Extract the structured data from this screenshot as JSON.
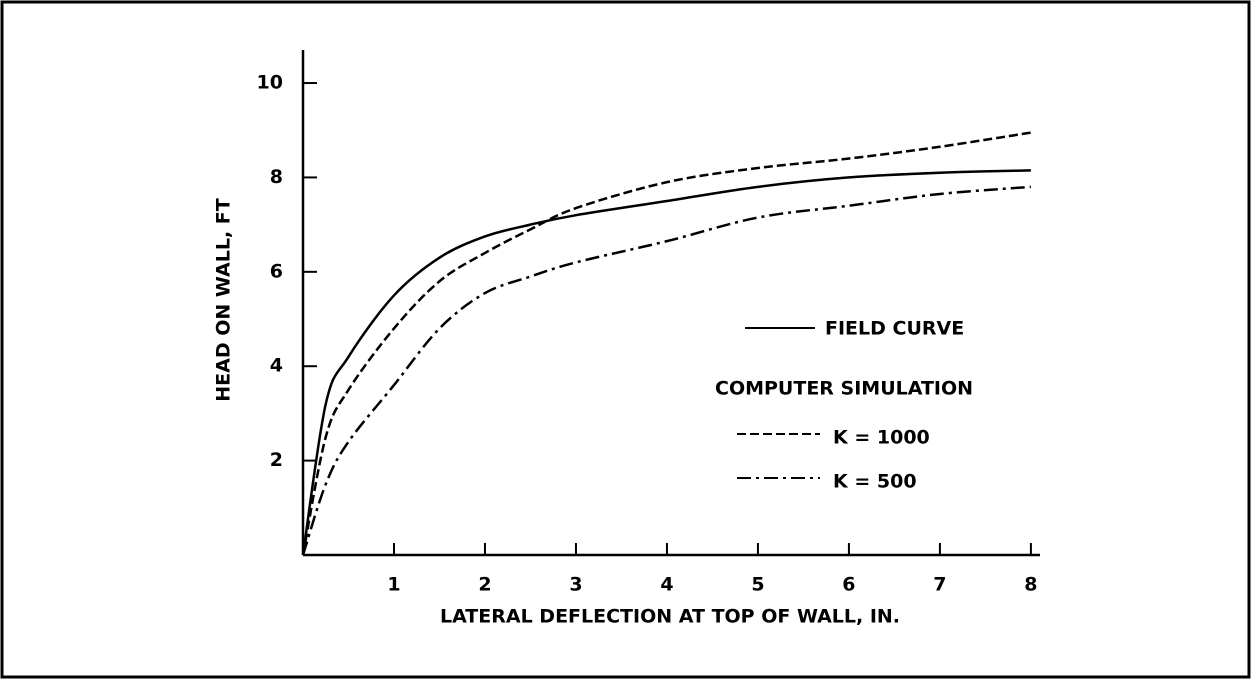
{
  "chart_data": {
    "type": "line",
    "x_label": "LATERAL DEFLECTION AT TOP OF WALL, IN.",
    "y_label": "HEAD ON WALL, FT",
    "annotation": "COMPUTER SIMULATION",
    "x": [
      0,
      0.25,
      0.5,
      1,
      1.5,
      2,
      2.5,
      3,
      4,
      5,
      6,
      7,
      8
    ],
    "series": [
      {
        "name": "FIELD CURVE",
        "color": "#000000",
        "style": "solid",
        "values": [
          0,
          3.2,
          4.2,
          5.5,
          6.3,
          6.75,
          7.0,
          7.2,
          7.5,
          7.8,
          8.0,
          8.1,
          8.15
        ]
      },
      {
        "name": "K = 1000",
        "color": "#000000",
        "style": "dashed",
        "values": [
          0,
          2.5,
          3.5,
          4.8,
          5.8,
          6.4,
          6.9,
          7.35,
          7.9,
          8.2,
          8.4,
          8.65,
          8.95
        ]
      },
      {
        "name": "K = 500",
        "color": "#000000",
        "style": "dashdot",
        "values": [
          0,
          1.5,
          2.4,
          3.6,
          4.8,
          5.55,
          5.9,
          6.2,
          6.65,
          7.15,
          7.4,
          7.65,
          7.8
        ]
      }
    ],
    "xlim": [
      0,
      8.1
    ],
    "ylim": [
      0,
      10.7
    ],
    "xticks": [
      1,
      2,
      3,
      4,
      5,
      6,
      7,
      8
    ],
    "yticks": [
      2,
      4,
      6,
      8,
      10
    ],
    "grid": false
  }
}
